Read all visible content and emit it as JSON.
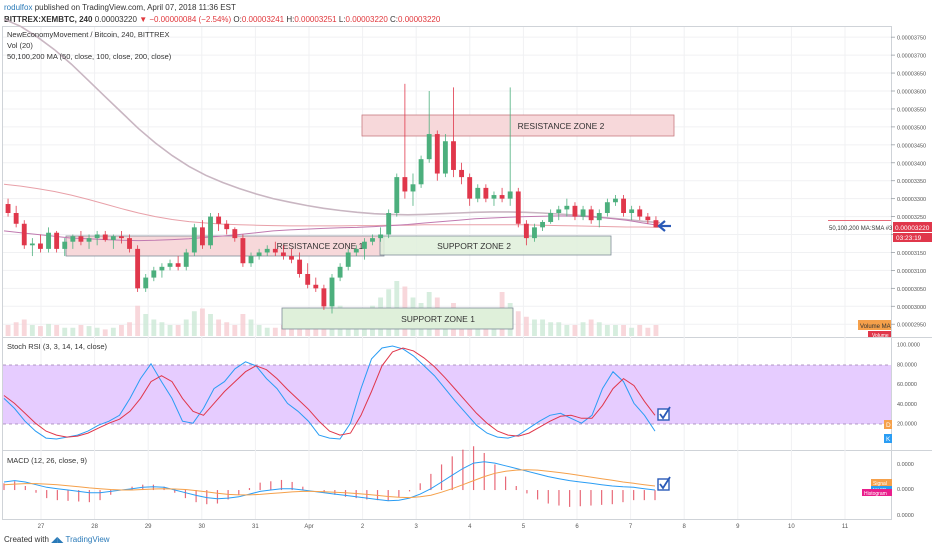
{
  "header": {
    "user": "rodulfox",
    "published": " published on TradingView.com, April 07, 2018 11:36 EST",
    "symbol": "BITTREX:XEMBTC, 240",
    "last": " 0.00003220 ",
    "change_arrow": "▼",
    "change": " −0.00000084 (−2.54%) ",
    "o_label": "O:",
    "o_value": "0.00003241 ",
    "h_label": "H:",
    "h_value": "0.00003251 ",
    "l_label": "L:",
    "l_value": "0.00003220 ",
    "c_label": "C:",
    "c_value": "0.00003220"
  },
  "legend": {
    "pair": "NewEconomyMovement / Bitcoin, 240, BITTREX",
    "vol": "Vol (20)",
    "ma": "50,100,200 MA (50, close, 100, close, 200, close)"
  },
  "price_axis": [
    "0.00003750",
    "0.00003700",
    "0.00003650",
    "0.00003600",
    "0.00003550",
    "0.00003500",
    "0.00003450",
    "0.00003400",
    "0.00003350",
    "0.00003300",
    "0.00003250",
    "0.00003200",
    "0.00003150",
    "0.00003100",
    "0.00003050",
    "0.00003000",
    "0.00002950"
  ],
  "price_tags": {
    "current": "0.00003220",
    "countdown": "03:23:19",
    "ma_label": "50,100,200 MA:SMA #3",
    "volume_ma": "Volume MA",
    "volume": "Volume"
  },
  "zones": {
    "resistance_2": "RESISTANCE ZONE 2",
    "resistance_1": "RESISTANCE ZONE 1",
    "support_2": "SUPPORT ZONE 2",
    "support_1": "SUPPORT ZONE 1"
  },
  "rsi": {
    "title": "Stoch RSI (3, 3, 14, 14, close)",
    "axis": [
      "100.0000",
      "80.0000",
      "60.0000",
      "40.0000",
      "20.0000"
    ],
    "tag_d": "D",
    "tag_k": "K"
  },
  "macd": {
    "title": "MACD (12, 26, close, 9)",
    "axis": [
      "0.0000",
      "0.0000",
      "0.0000"
    ],
    "tag_signal": "Signal",
    "tag_macd": "MACD",
    "tag_hist": "Histogram"
  },
  "time_axis": [
    "27",
    "28",
    "29",
    "30",
    "31",
    "Apr",
    "2",
    "3",
    "4",
    "5",
    "6",
    "7",
    "8",
    "9",
    "10",
    "11"
  ],
  "footer": {
    "created": "Created with ",
    "brand": "TradingView"
  },
  "colors": {
    "up": "#4caf7d",
    "down": "#e0374b",
    "rsi_band": "#e6ccff",
    "zone_res": "#f7d8da",
    "zone_sup": "#dff0da",
    "accent": "#2a5ab8"
  },
  "chart_data": {
    "type": "candlestick",
    "title": "NewEconomyMovement / Bitcoin, 240, BITTREX",
    "ylim": [
      2.92e-05,
      3.77e-05
    ],
    "candles": [
      [
        3.285e-05,
        3.3e-05,
        3.25e-05,
        3.26e-05
      ],
      [
        3.26e-05,
        3.28e-05,
        3.22e-05,
        3.23e-05
      ],
      [
        3.23e-05,
        3.24e-05,
        3.16e-05,
        3.17e-05
      ],
      [
        3.17e-05,
        3.19e-05,
        3.14e-05,
        3.175e-05
      ],
      [
        3.175e-05,
        3.2e-05,
        3.15e-05,
        3.16e-05
      ],
      [
        3.16e-05,
        3.22e-05,
        3.15e-05,
        3.205e-05
      ],
      [
        3.205e-05,
        3.21e-05,
        3.15e-05,
        3.16e-05
      ],
      [
        3.16e-05,
        3.19e-05,
        3.14e-05,
        3.18e-05
      ],
      [
        3.18e-05,
        3.2e-05,
        3.16e-05,
        3.195e-05
      ],
      [
        3.195e-05,
        3.21e-05,
        3.17e-05,
        3.18e-05
      ],
      [
        3.18e-05,
        3.2e-05,
        3.16e-05,
        3.19e-05
      ],
      [
        3.19e-05,
        3.21e-05,
        3.17e-05,
        3.2e-05
      ],
      [
        3.2e-05,
        3.21e-05,
        3.18e-05,
        3.185e-05
      ],
      [
        3.185e-05,
        3.2e-05,
        3.16e-05,
        3.195e-05
      ],
      [
        3.195e-05,
        3.21e-05,
        3.175e-05,
        3.19e-05
      ],
      [
        3.19e-05,
        3.2e-05,
        3.15e-05,
        3.16e-05
      ],
      [
        3.16e-05,
        3.17e-05,
        3.04e-05,
        3.05e-05
      ],
      [
        3.05e-05,
        3.09e-05,
        3.04e-05,
        3.08e-05
      ],
      [
        3.08e-05,
        3.11e-05,
        3.07e-05,
        3.1e-05
      ],
      [
        3.1e-05,
        3.12e-05,
        3.08e-05,
        3.11e-05
      ],
      [
        3.11e-05,
        3.13e-05,
        3.1e-05,
        3.12e-05
      ],
      [
        3.12e-05,
        3.14e-05,
        3.1e-05,
        3.11e-05
      ],
      [
        3.11e-05,
        3.16e-05,
        3.1e-05,
        3.15e-05
      ],
      [
        3.15e-05,
        3.23e-05,
        3.14e-05,
        3.22e-05
      ],
      [
        3.22e-05,
        3.24e-05,
        3.16e-05,
        3.17e-05
      ],
      [
        3.17e-05,
        3.26e-05,
        3.16e-05,
        3.25e-05
      ],
      [
        3.25e-05,
        3.26e-05,
        3.21e-05,
        3.23e-05
      ],
      [
        3.23e-05,
        3.24e-05,
        3.2e-05,
        3.215e-05
      ],
      [
        3.215e-05,
        3.22e-05,
        3.18e-05,
        3.19e-05
      ],
      [
        3.19e-05,
        3.2e-05,
        3.11e-05,
        3.12e-05
      ],
      [
        3.12e-05,
        3.15e-05,
        3.11e-05,
        3.14e-05
      ],
      [
        3.14e-05,
        3.16e-05,
        3.13e-05,
        3.15e-05
      ],
      [
        3.15e-05,
        3.17e-05,
        3.14e-05,
        3.16e-05
      ],
      [
        3.16e-05,
        3.18e-05,
        3.14e-05,
        3.15e-05
      ],
      [
        3.15e-05,
        3.17e-05,
        3.13e-05,
        3.14e-05
      ],
      [
        3.14e-05,
        3.16e-05,
        3.12e-05,
        3.13e-05
      ],
      [
        3.13e-05,
        3.15e-05,
        3.08e-05,
        3.09e-05
      ],
      [
        3.09e-05,
        3.12e-05,
        3.05e-05,
        3.06e-05
      ],
      [
        3.06e-05,
        3.08e-05,
        3.04e-05,
        3.05e-05
      ],
      [
        3.05e-05,
        3.06e-05,
        2.99e-05,
        3e-05
      ],
      [
        3e-05,
        3.09e-05,
        2.98e-05,
        3.08e-05
      ],
      [
        3.08e-05,
        3.12e-05,
        3.07e-05,
        3.11e-05
      ],
      [
        3.11e-05,
        3.16e-05,
        3.1e-05,
        3.15e-05
      ],
      [
        3.15e-05,
        3.17e-05,
        3.14e-05,
        3.16e-05
      ],
      [
        3.16e-05,
        3.19e-05,
        3.13e-05,
        3.18e-05
      ],
      [
        3.18e-05,
        3.2e-05,
        3.17e-05,
        3.19e-05
      ],
      [
        3.19e-05,
        3.22e-05,
        3.18e-05,
        3.2e-05
      ],
      [
        3.2e-05,
        3.27e-05,
        3.19e-05,
        3.26e-05
      ],
      [
        3.26e-05,
        3.37e-05,
        3.25e-05,
        3.36e-05
      ],
      [
        3.36e-05,
        3.62e-05,
        3.3e-05,
        3.32e-05
      ],
      [
        3.32e-05,
        3.37e-05,
        3.28e-05,
        3.34e-05
      ],
      [
        3.34e-05,
        3.42e-05,
        3.33e-05,
        3.41e-05
      ],
      [
        3.41e-05,
        3.6e-05,
        3.4e-05,
        3.48e-05
      ],
      [
        3.48e-05,
        3.49e-05,
        3.35e-05,
        3.37e-05
      ],
      [
        3.37e-05,
        3.48e-05,
        3.36e-05,
        3.46e-05
      ],
      [
        3.46e-05,
        3.61e-05,
        3.36e-05,
        3.38e-05
      ],
      [
        3.38e-05,
        3.4e-05,
        3.34e-05,
        3.36e-05
      ],
      [
        3.36e-05,
        3.37e-05,
        3.28e-05,
        3.3e-05
      ],
      [
        3.3e-05,
        3.34e-05,
        3.29e-05,
        3.33e-05
      ],
      [
        3.33e-05,
        3.34e-05,
        3.29e-05,
        3.3e-05
      ],
      [
        3.3e-05,
        3.32e-05,
        3.28e-05,
        3.31e-05
      ],
      [
        3.31e-05,
        3.33e-05,
        3.29e-05,
        3.3e-05
      ],
      [
        3.3e-05,
        3.61e-05,
        3.28e-05,
        3.32e-05
      ],
      [
        3.32e-05,
        3.33e-05,
        3.22e-05,
        3.23e-05
      ],
      [
        3.23e-05,
        3.24e-05,
        3.17e-05,
        3.19e-05
      ],
      [
        3.19e-05,
        3.23e-05,
        3.18e-05,
        3.22e-05
      ],
      [
        3.22e-05,
        3.24e-05,
        3.21e-05,
        3.235e-05
      ],
      [
        3.235e-05,
        3.27e-05,
        3.23e-05,
        3.26e-05
      ],
      [
        3.26e-05,
        3.28e-05,
        3.24e-05,
        3.27e-05
      ],
      [
        3.27e-05,
        3.3e-05,
        3.25e-05,
        3.28e-05
      ],
      [
        3.28e-05,
        3.29e-05,
        3.24e-05,
        3.25e-05
      ],
      [
        3.25e-05,
        3.28e-05,
        3.24e-05,
        3.27e-05
      ],
      [
        3.27e-05,
        3.28e-05,
        3.23e-05,
        3.24e-05
      ],
      [
        3.24e-05,
        3.27e-05,
        3.22e-05,
        3.26e-05
      ],
      [
        3.26e-05,
        3.3e-05,
        3.25e-05,
        3.29e-05
      ],
      [
        3.29e-05,
        3.31e-05,
        3.28e-05,
        3.3e-05
      ],
      [
        3.3e-05,
        3.31e-05,
        3.25e-05,
        3.26e-05
      ],
      [
        3.26e-05,
        3.28e-05,
        3.24e-05,
        3.27e-05
      ],
      [
        3.27e-05,
        3.28e-05,
        3.24e-05,
        3.25e-05
      ],
      [
        3.25e-05,
        3.26e-05,
        3.23e-05,
        3.24e-05
      ],
      [
        3.24e-05,
        3.251e-05,
        3.22e-05,
        3.22e-05
      ]
    ],
    "volume_rel": [
      0.2,
      0.25,
      0.3,
      0.2,
      0.18,
      0.22,
      0.2,
      0.15,
      0.15,
      0.2,
      0.18,
      0.15,
      0.12,
      0.15,
      0.2,
      0.25,
      0.55,
      0.4,
      0.3,
      0.25,
      0.2,
      0.2,
      0.3,
      0.45,
      0.5,
      0.4,
      0.3,
      0.25,
      0.2,
      0.4,
      0.3,
      0.2,
      0.15,
      0.15,
      0.2,
      0.25,
      0.35,
      0.45,
      0.5,
      0.6,
      0.7,
      0.55,
      0.5,
      0.4,
      0.45,
      0.55,
      0.7,
      0.85,
      1.0,
      0.9,
      0.7,
      0.6,
      0.8,
      0.7,
      0.5,
      0.6,
      0.45,
      0.5,
      0.3,
      0.3,
      0.25,
      0.8,
      0.6,
      0.45,
      0.35,
      0.3,
      0.3,
      0.25,
      0.25,
      0.2,
      0.2,
      0.25,
      0.3,
      0.25,
      0.2,
      0.2,
      0.2,
      0.15,
      0.2,
      0.15
    ],
    "ma_50": [
      3.21e-05,
      3.205e-05,
      3.2e-05,
      3.195e-05,
      3.19e-05,
      3.188e-05,
      3.186e-05,
      3.184e-05,
      3.183e-05,
      3.184e-05,
      3.186e-05,
      3.188e-05,
      3.192e-05,
      3.196e-05,
      3.2e-05,
      3.205e-05,
      3.21e-05,
      3.213e-05,
      3.215e-05,
      3.217e-05,
      3.219e-05,
      3.22e-05,
      3.222e-05,
      3.225e-05,
      3.228e-05,
      3.232e-05,
      3.236e-05,
      3.24e-05,
      3.244e-05,
      3.246e-05,
      3.248e-05,
      3.25e-05,
      3.251e-05,
      3.252e-05,
      3.251e-05,
      3.249e-05,
      3.245e-05,
      3.24e-05,
      3.232e-05,
      3.225e-05
    ],
    "ma_100": [
      3.8e-05,
      3.78e-05,
      3.75e-05,
      3.715e-05,
      3.675e-05,
      3.63e-05,
      3.585e-05,
      3.54e-05,
      3.495e-05,
      3.455e-05,
      3.42e-05,
      3.39e-05,
      3.365e-05,
      3.345e-05,
      3.328e-05,
      3.313e-05,
      3.3e-05,
      3.29e-05,
      3.281e-05,
      3.273e-05,
      3.267e-05,
      3.262e-05,
      3.258e-05,
      3.256e-05,
      3.255e-05,
      3.256e-05,
      3.258e-05,
      3.26e-05,
      3.262e-05,
      3.263e-05,
      3.263e-05,
      3.262e-05,
      3.26e-05,
      3.257e-05,
      3.254e-05,
      3.25e-05,
      3.246e-05,
      3.242e-05,
      3.237e-05,
      3.233e-05
    ],
    "ma_200": [
      3.34e-05,
      3.335e-05,
      3.328e-05,
      3.32e-05,
      3.31e-05,
      3.298e-05,
      3.285e-05,
      3.272e-05,
      3.26e-05,
      3.25e-05,
      3.242e-05,
      3.236e-05,
      3.232e-05,
      3.229e-05,
      3.227e-05,
      3.226e-05,
      3.225e-05,
      3.224e-05,
      3.224e-05,
      3.224e-05,
      3.224e-05,
      3.225e-05,
      3.225e-05,
      3.226e-05,
      3.226e-05,
      3.227e-05,
      3.227e-05,
      3.227e-05,
      3.227e-05,
      3.227e-05,
      3.227e-05,
      3.227e-05,
      3.226e-05,
      3.225e-05,
      3.224e-05,
      3.223e-05,
      3.222e-05,
      3.221e-05,
      3.221e-05,
      3.22e-05
    ],
    "stoch_k": [
      45,
      35,
      22,
      12,
      5,
      4,
      6,
      8,
      12,
      18,
      22,
      28,
      45,
      65,
      80,
      62,
      45,
      22,
      20,
      35,
      55,
      62,
      75,
      82,
      78,
      65,
      55,
      40,
      32,
      22,
      8,
      5,
      4,
      20,
      55,
      85,
      96,
      98,
      95,
      88,
      78,
      68,
      55,
      42,
      30,
      18,
      10,
      6,
      5,
      8,
      15,
      22,
      28,
      30,
      25,
      20,
      28,
      55,
      72,
      62,
      40,
      28,
      12
    ],
    "stoch_d": [
      48,
      40,
      30,
      20,
      12,
      8,
      6,
      7,
      10,
      15,
      20,
      24,
      32,
      45,
      62,
      68,
      62,
      45,
      32,
      28,
      40,
      52,
      62,
      72,
      78,
      74,
      65,
      54,
      44,
      34,
      22,
      12,
      8,
      10,
      28,
      52,
      78,
      92,
      96,
      93,
      86,
      77,
      66,
      54,
      42,
      30,
      20,
      12,
      8,
      7,
      10,
      16,
      22,
      27,
      28,
      25,
      25,
      38,
      55,
      65,
      58,
      42,
      28
    ],
    "stoch_ylim": [
      0,
      100
    ],
    "stoch_band": [
      20,
      80
    ],
    "macd_line": [
      0.3,
      0.35,
      0.3,
      0.2,
      0.1,
      0.05,
      0.0,
      -0.05,
      -0.1,
      -0.1,
      -0.05,
      0.0,
      0.05,
      0.1,
      0.12,
      0.1,
      0.0,
      -0.1,
      -0.2,
      -0.28,
      -0.32,
      -0.3,
      -0.25,
      -0.15,
      -0.05,
      0.0,
      0.05,
      0.05,
      0.0,
      -0.05,
      -0.1,
      -0.15,
      -0.2,
      -0.25,
      -0.3,
      -0.35,
      -0.4,
      -0.38,
      -0.3,
      -0.15,
      0.05,
      0.3,
      0.55,
      0.8,
      1.0,
      1.05,
      1.0,
      0.9,
      0.8,
      0.7,
      0.6,
      0.5,
      0.42,
      0.35,
      0.3,
      0.25,
      0.2,
      0.15,
      0.12,
      0.1,
      0.05,
      0.0
    ],
    "macd_signal": [
      0.2,
      0.22,
      0.24,
      0.24,
      0.22,
      0.2,
      0.16,
      0.12,
      0.08,
      0.05,
      0.02,
      0.0,
      0.0,
      0.02,
      0.04,
      0.05,
      0.04,
      0.02,
      -0.02,
      -0.07,
      -0.12,
      -0.16,
      -0.18,
      -0.18,
      -0.16,
      -0.13,
      -0.1,
      -0.07,
      -0.05,
      -0.05,
      -0.06,
      -0.08,
      -0.1,
      -0.13,
      -0.16,
      -0.2,
      -0.24,
      -0.27,
      -0.28,
      -0.25,
      -0.19,
      -0.08,
      0.05,
      0.2,
      0.35,
      0.5,
      0.62,
      0.7,
      0.74,
      0.75,
      0.74,
      0.7,
      0.65,
      0.6,
      0.54,
      0.48,
      0.42,
      0.36,
      0.3,
      0.25,
      0.2,
      0.15
    ],
    "macd_ylim": [
      -1.0,
      1.3
    ]
  }
}
